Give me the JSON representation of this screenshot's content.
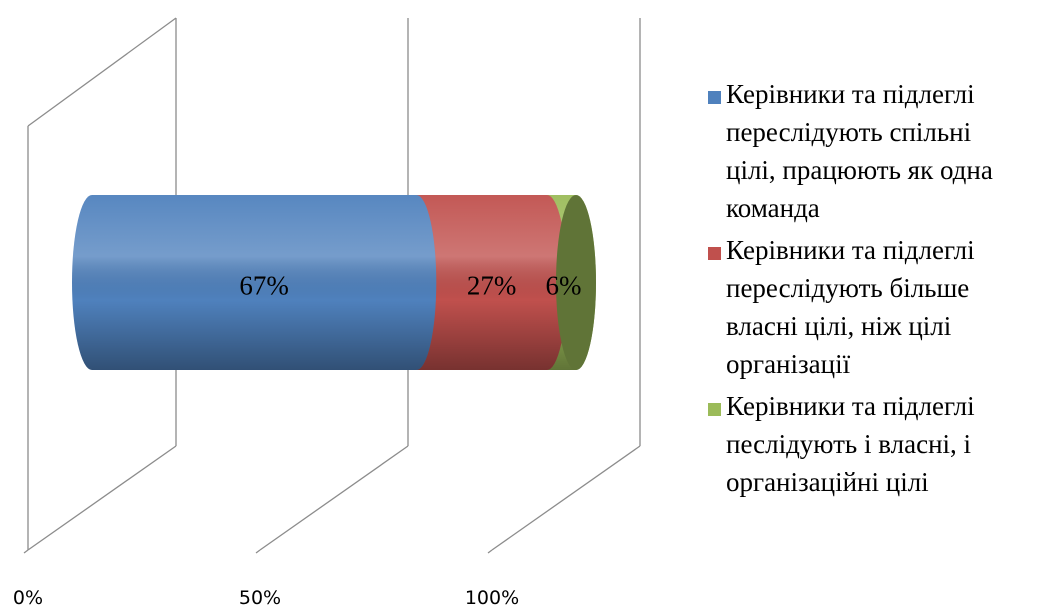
{
  "chart_data": {
    "type": "bar",
    "subtype": "100% stacked horizontal cylinder (3D)",
    "x_ticks": [
      "0%",
      "50%",
      "100%"
    ],
    "xlim": [
      0,
      100
    ],
    "grid": true,
    "legend_position": "right",
    "series": [
      {
        "name": "Керівники та підлеглі переслідують спільні цілі, працюють як одна команда",
        "legend_lines": [
          "Керівники та підлеглі",
          "переслідують спільні",
          "цілі, працюють як одна",
          "команда"
        ],
        "value": 67,
        "label": "67%",
        "color": "#4F81BD"
      },
      {
        "name": "Керівники та підлеглі переслідують більше власні цілі, ніж цілі організації",
        "legend_lines": [
          "Керівники та підлеглі",
          "переслідують більше",
          "власні цілі, ніж цілі",
          "організації"
        ],
        "value": 27,
        "label": "27%",
        "color": "#C0504D"
      },
      {
        "name": "Керівники та підлеглі песлідують і власні, і організаційні цілі",
        "legend_lines": [
          "Керівники та підлеглі",
          "песлідують і власні, і",
          "організаційні цілі"
        ],
        "value": 6,
        "label": "6%",
        "color": "#9BBB59"
      }
    ]
  }
}
